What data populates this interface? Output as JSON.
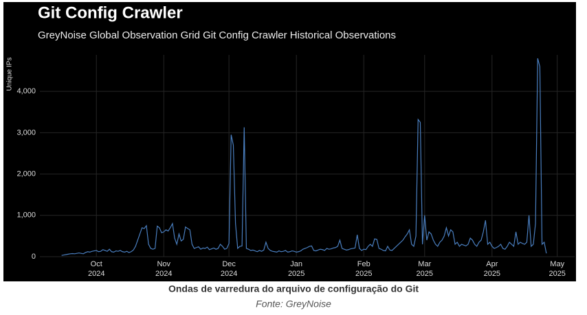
{
  "chart_data": {
    "type": "line",
    "title": "Git Config Crawler",
    "subtitle": "GreyNoise Global Observation Grid Git Config Crawler Historical Observations",
    "y_label": "Unique IPs",
    "caption": "Ondas de varredura do arquivo de configuração do Git",
    "source": "Fonte: GreyNoise",
    "grid": true,
    "series": [
      {
        "name": "Unique IPs",
        "color": "#4a7fc0",
        "values": [
          30,
          40,
          50,
          60,
          70,
          75,
          70,
          80,
          90,
          80,
          70,
          100,
          120,
          110,
          130,
          140,
          150,
          120,
          130,
          170,
          150,
          130,
          180,
          120,
          110,
          140,
          130,
          150,
          120,
          110,
          130,
          100,
          120,
          160,
          250,
          400,
          550,
          700,
          680,
          750,
          300,
          200,
          180,
          200,
          740,
          700,
          580,
          600,
          650,
          620,
          700,
          800,
          450,
          300,
          550,
          380,
          420,
          720,
          680,
          650,
          300,
          200,
          220,
          240,
          180,
          210,
          200,
          230,
          170,
          190,
          210,
          180,
          200,
          300,
          250,
          180,
          200,
          320,
          2950,
          2700,
          800,
          200,
          250,
          260,
          3130,
          200,
          180,
          150,
          160,
          140,
          120,
          150,
          130,
          160,
          350,
          200,
          150,
          130,
          120,
          110,
          140,
          120,
          130,
          150,
          110,
          120,
          140,
          130,
          110,
          120,
          140,
          180,
          200,
          220,
          250,
          260,
          150,
          140,
          160,
          180,
          170,
          150,
          200,
          180,
          190,
          210,
          220,
          250,
          400,
          200,
          180,
          160,
          170,
          190,
          200,
          210,
          530,
          200,
          150,
          180,
          170,
          250,
          300,
          250,
          430,
          420,
          200,
          180,
          150,
          140,
          250,
          160,
          150,
          200,
          250,
          300,
          350,
          400,
          480,
          550,
          650,
          300,
          250,
          500,
          3320,
          3250,
          300,
          1000,
          400,
          600,
          550,
          400,
          300,
          250,
          350,
          400,
          500,
          700,
          500,
          650,
          600,
          300,
          350,
          250,
          300,
          280,
          260,
          300,
          450,
          400,
          300,
          250,
          350,
          400,
          600,
          880,
          300,
          350,
          250,
          200,
          220,
          250,
          300,
          200,
          180,
          250,
          350,
          300,
          250,
          600,
          300,
          350,
          320,
          300,
          350,
          1000,
          250,
          300,
          800,
          4800,
          4600,
          300,
          350,
          80
        ]
      }
    ],
    "xlim": [
      -10,
      236
    ],
    "xticks": [
      {
        "value": 16,
        "label": "Oct 2024"
      },
      {
        "value": 47,
        "label": "Nov 2024"
      },
      {
        "value": 77,
        "label": "Dec 2024"
      },
      {
        "value": 108,
        "label": "Jan 2025"
      },
      {
        "value": 139,
        "label": "Feb 2025"
      },
      {
        "value": 167,
        "label": "Mar 2025"
      },
      {
        "value": 198,
        "label": "Apr 2025"
      },
      {
        "value": 228,
        "label": "May 2025"
      }
    ],
    "ylim": [
      0,
      4800
    ],
    "yticks": [
      0,
      {
        "value": 1000,
        "label": "1,000"
      },
      {
        "value": 2000,
        "label": "2,000"
      },
      {
        "value": 3000,
        "label": "3,000"
      },
      {
        "value": 4000,
        "label": "4,000"
      }
    ]
  }
}
